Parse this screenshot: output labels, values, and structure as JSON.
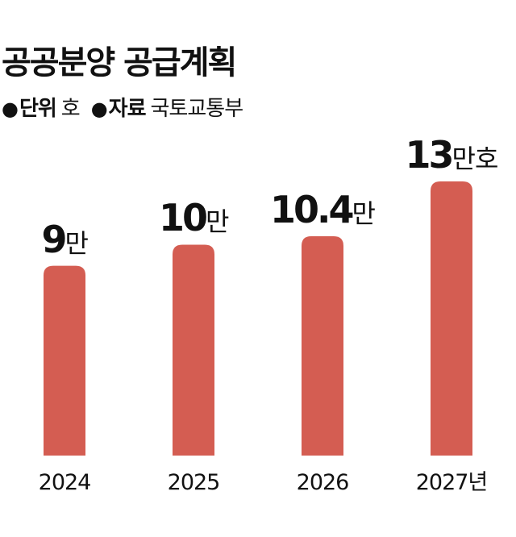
{
  "title": "공공분양 공급계획",
  "meta": {
    "dot": "●",
    "unit_key": "단위",
    "unit_value": "호",
    "source_key": "자료",
    "source_value": "국토교통부"
  },
  "colors": {
    "bar": "#d45d52",
    "text": "#111111"
  },
  "chart_data": {
    "type": "bar",
    "title": "공공분양 공급계획",
    "unit": "호",
    "source": "국토교통부",
    "categories": [
      "2024",
      "2025",
      "2026",
      "2027년"
    ],
    "values": [
      90000,
      100000,
      104000,
      130000
    ],
    "data_labels": [
      {
        "number": "9",
        "unit": "만"
      },
      {
        "number": "10",
        "unit": "만"
      },
      {
        "number": "10.4",
        "unit": "만"
      },
      {
        "number": "13",
        "unit": "만호"
      }
    ],
    "ylim": [
      0,
      130000
    ],
    "grid": false,
    "legend": "none"
  }
}
